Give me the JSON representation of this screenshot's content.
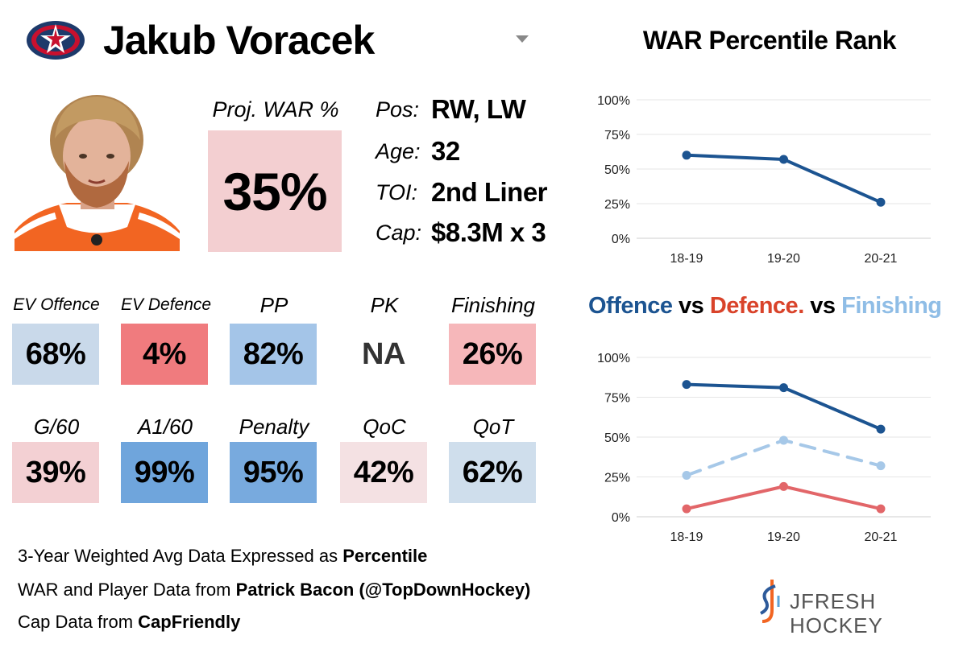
{
  "player": {
    "name": "Jakub Voracek",
    "proj_war_label": "Proj. WAR %",
    "proj_war_value": "35%",
    "info": [
      {
        "label": "Pos:",
        "value": "RW, LW"
      },
      {
        "label": "Age:",
        "value": "32"
      },
      {
        "label": "TOI:",
        "value": "2nd Liner"
      },
      {
        "label": "Cap:",
        "value": "$8.3M x 3"
      }
    ]
  },
  "stats": [
    {
      "label": "EV Offence",
      "value": "68%",
      "color": "#c9d9ea"
    },
    {
      "label": "EV Defence",
      "value": "4%",
      "color": "#f07b7e"
    },
    {
      "label": "PP",
      "value": "82%",
      "color": "#a4c5e8"
    },
    {
      "label": "PK",
      "value": "NA",
      "color": "#ffffff"
    },
    {
      "label": "Finishing",
      "value": "26%",
      "color": "#f6b7ba"
    },
    {
      "label": "G/60",
      "value": "39%",
      "color": "#f3d0d3"
    },
    {
      "label": "A1/60",
      "value": "99%",
      "color": "#6fa5dc"
    },
    {
      "label": "Penalty",
      "value": "95%",
      "color": "#78aade"
    },
    {
      "label": "QoC",
      "value": "42%",
      "color": "#f4e1e3"
    },
    {
      "label": "QoT",
      "value": "62%",
      "color": "#cfdeec"
    }
  ],
  "footer": {
    "line1": {
      "text": "3-Year Weighted Avg Data Expressed as ",
      "bold": "Percentile"
    },
    "line2": {
      "text": "WAR and Player Data from ",
      "bold": "Patrick Bacon (@TopDownHockey)"
    },
    "line3": {
      "text": "Cap Data from ",
      "bold": "CapFriendly"
    }
  },
  "brand": {
    "text": "JFRESH HOCKEY"
  },
  "icons": {
    "team_logo": "blue-jackets-logo-icon",
    "dropdown": "chevron-down-icon",
    "brand": "jfresh-logo-icon"
  },
  "colors": {
    "offence": "#1c5491",
    "defence": "#e26669",
    "finishing": "#a6c8e8"
  },
  "chart_data": [
    {
      "type": "line",
      "title": "WAR Percentile Rank",
      "categories": [
        "18-19",
        "19-20",
        "20-21"
      ],
      "series": [
        {
          "values": [
            60,
            57,
            26
          ],
          "color": "#1c5491",
          "dashed": false
        }
      ],
      "ylim": [
        0,
        100
      ],
      "yticks": [
        "100%",
        "75%",
        "50%",
        "25%",
        "0%"
      ],
      "ytick_values": [
        100,
        75,
        50,
        25,
        0
      ],
      "grid": true
    },
    {
      "type": "line",
      "title_parts": [
        {
          "text": "Offence",
          "color": "#1c5491"
        },
        {
          "text": " vs ",
          "color": "#000000"
        },
        {
          "text": "Defence.",
          "color": "#d9432a"
        },
        {
          "text": " vs ",
          "color": "#000000"
        },
        {
          "text": "Finishing",
          "color": "#8fbde6"
        }
      ],
      "categories": [
        "18-19",
        "19-20",
        "20-21"
      ],
      "series": [
        {
          "values": [
            83,
            81,
            55
          ],
          "color": "#1c5491",
          "dashed": false
        },
        {
          "values": [
            26,
            48,
            32
          ],
          "color": "#a6c8e8",
          "dashed": true
        },
        {
          "values": [
            5,
            19,
            5
          ],
          "color": "#e26669",
          "dashed": false
        }
      ],
      "ylim": [
        0,
        100
      ],
      "yticks": [
        "100%",
        "75%",
        "50%",
        "25%",
        "0%"
      ],
      "ytick_values": [
        100,
        75,
        50,
        25,
        0
      ],
      "grid": true
    }
  ]
}
